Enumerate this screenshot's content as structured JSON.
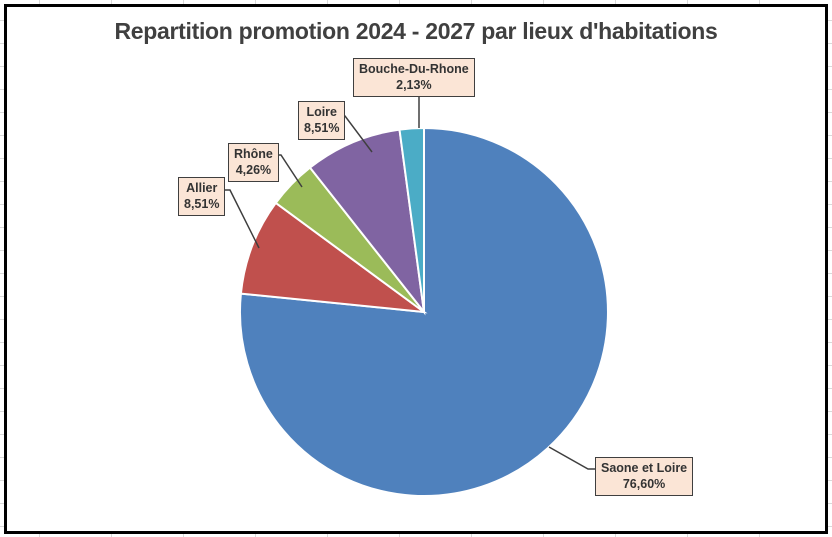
{
  "app": {
    "type": "spreadsheet-chart-object",
    "gridline_color": "#D9D9D9",
    "chart_background": "#FFFFFF",
    "chart_border_color": "#000000"
  },
  "chart_data": {
    "type": "pie",
    "title": "Repartition promotion 2024 - 2027 par lieux d'habitations",
    "title_color": "#404040",
    "start_angle_deg": 0,
    "direction": "clockwise",
    "legend_position": "none",
    "grid": "off",
    "slice_separator_color": "#FFFFFF",
    "slices": [
      {
        "name": "Saone et Loire",
        "value": 76.6,
        "label": "76,60%",
        "color": "#4F81BD"
      },
      {
        "name": "Allier",
        "value": 8.51,
        "label": "8,51%",
        "color": "#C0504D"
      },
      {
        "name": "Rhône",
        "value": 4.26,
        "label": "4,26%",
        "color": "#9BBB59"
      },
      {
        "name": "Loire",
        "value": 8.51,
        "label": "8,51%",
        "color": "#8064A2"
      },
      {
        "name": "Bouche-Du-Rhone",
        "value": 2.13,
        "label": "2,13%",
        "color": "#4BACC6"
      }
    ],
    "callout_style": {
      "fill": "#FBE5D6",
      "border_color": "#3F3F3F",
      "text_color": "#333333",
      "leader_line_color": "#3F3F3F"
    }
  }
}
